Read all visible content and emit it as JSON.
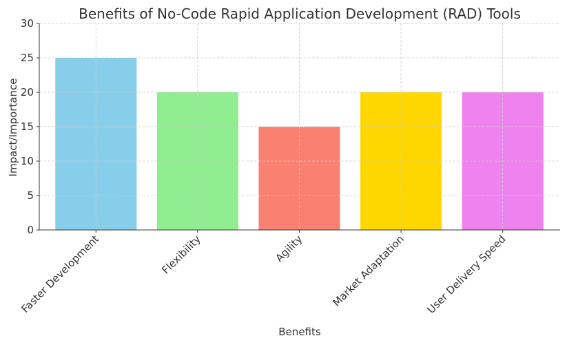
{
  "chart_data": {
    "type": "bar",
    "title": "Benefits of No-Code Rapid Application Development (RAD) Tools",
    "xlabel": "Benefits",
    "ylabel": "Impact/Importance",
    "categories": [
      "Faster Development",
      "Flexibility",
      "Agility",
      "Market Adaptation",
      "User Delivery Speed"
    ],
    "values": [
      25,
      20,
      15,
      20,
      20
    ],
    "colors": [
      "#87CEEB",
      "#90EE90",
      "#FA8072",
      "#FFD700",
      "#EE82EE"
    ],
    "ylim": [
      0,
      30
    ],
    "yticks": [
      0,
      5,
      10,
      15,
      20,
      25,
      30
    ],
    "grid": true,
    "legend": "none"
  }
}
